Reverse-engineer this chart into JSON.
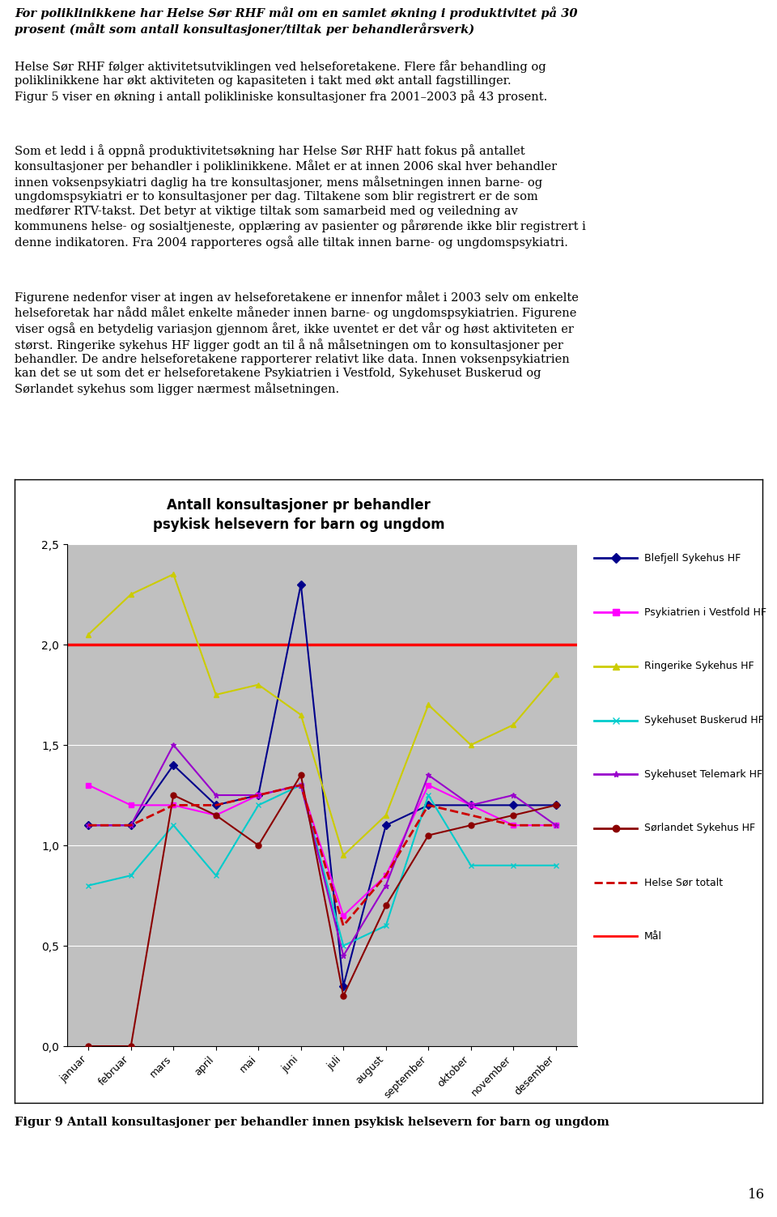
{
  "title_line1": "Antall konsultasjoner pr behandler",
  "title_line2": "psykisk helsevern for barn og ungdom",
  "months": [
    "januar",
    "februar",
    "mars",
    "april",
    "mai",
    "juni",
    "juli",
    "august",
    "september",
    "oktober",
    "november",
    "desember"
  ],
  "series": {
    "Blefjell Sykehus HF": {
      "data": [
        1.1,
        1.1,
        1.4,
        1.2,
        1.25,
        2.3,
        0.3,
        1.1,
        1.2,
        1.2,
        1.2,
        1.2
      ],
      "color": "#00008B",
      "marker": "D",
      "linewidth": 1.5,
      "linestyle": "-"
    },
    "Psykiatrien i Vestfold HF": {
      "data": [
        1.3,
        1.2,
        1.2,
        1.15,
        1.25,
        1.3,
        0.65,
        0.85,
        1.3,
        1.2,
        1.1,
        1.1
      ],
      "color": "#FF00FF",
      "marker": "s",
      "linewidth": 1.5,
      "linestyle": "-"
    },
    "Ringerike Sykehus HF": {
      "data": [
        2.05,
        2.25,
        2.35,
        1.75,
        1.8,
        1.65,
        0.95,
        1.15,
        1.7,
        1.5,
        1.6,
        1.85
      ],
      "color": "#CCCC00",
      "marker": "^",
      "linewidth": 1.5,
      "linestyle": "-"
    },
    "Sykehuset Buskerud HF": {
      "data": [
        0.8,
        0.85,
        1.1,
        0.85,
        1.2,
        1.3,
        0.5,
        0.6,
        1.25,
        0.9,
        0.9,
        0.9
      ],
      "color": "#00CCCC",
      "marker": "x",
      "linewidth": 1.5,
      "linestyle": "-"
    },
    "Sykehuset Telemark HF": {
      "data": [
        1.1,
        1.1,
        1.5,
        1.25,
        1.25,
        1.3,
        0.45,
        0.8,
        1.35,
        1.2,
        1.25,
        1.1
      ],
      "color": "#9900CC",
      "marker": "*",
      "linewidth": 1.5,
      "linestyle": "-"
    },
    "Sorlandet Sykehus HF": {
      "data": [
        0.0,
        0.0,
        1.25,
        1.15,
        1.0,
        1.35,
        0.25,
        0.7,
        1.05,
        1.1,
        1.15,
        1.2
      ],
      "color": "#8B0000",
      "marker": "o",
      "linewidth": 1.5,
      "linestyle": "-"
    }
  },
  "helse_sor_totalt": {
    "data": [
      1.1,
      1.1,
      1.2,
      1.2,
      1.25,
      1.3,
      0.6,
      0.85,
      1.2,
      1.15,
      1.1,
      1.1
    ],
    "color": "#CC0000",
    "linewidth": 2.0,
    "linestyle": "--"
  },
  "mal": {
    "value": 2.0,
    "color": "#FF0000",
    "linewidth": 2.5,
    "linestyle": "-"
  },
  "ylim": [
    0.0,
    2.5
  ],
  "yticks": [
    0.0,
    0.5,
    1.0,
    1.5,
    2.0,
    2.5
  ],
  "ytick_labels": [
    "0,0",
    "0,5",
    "1,0",
    "1,5",
    "2,0",
    "2,5"
  ],
  "plot_area_color": "#C0C0C0",
  "figure_background": "#FFFFFF",
  "para1_bold": "For poliklinikkene har Helse Sør RHF mål om en samlet økning i produktivitet på 30\nprosent (målt som antall konsultasjoner/tiltak per behandlerårsverk)",
  "para1_normal": "Helse Sør RHF følger aktivitetsutviklingen ved helseforetakene. Flere får behandling og\npoliklinikkene har økt aktiviteten og kapasiteten i takt med økt antall fagstillinger.\nFigur 5 viser en økning i antall polikliniske konsultasjoner fra 2001–2003 på 43 prosent.",
  "para2": "Som et ledd i å oppnå produktivitetsøkning har Helse Sør RHF hatt fokus på antallet\nkonsultasjoner per behandler i poliklinikkene. Målet er at innen 2006 skal hver behandler\ninnen voksenpsykiatri daglig ha tre konsultasjoner, mens målsetningen innen barne- og\nungdomspsykiatri er to konsultasjoner per dag. Tiltakene som blir registrert er de som\nmedfører RTV-takst. Det betyr at viktige tiltak som samarbeid med og veiledning av\nkommunens helse- og sosialtjeneste, opplæring av pasienter og pårørende ikke blir registrert i\ndenne indikatoren. Fra 2004 rapporteres også alle tiltak innen barne- og ungdomspsykiatri.",
  "para3": "Figurene nedenfor viser at ingen av helseforetakene er innenfor målet i 2003 selv om enkelte\nhelseforetak har nådd målet enkelte måneder innen barne- og ungdomspsykiatrien. Figurene\nviser også en betydelig variasjon gjennom året, ikke uventet er det vår og høst aktiviteten er\nstørst. Ringerike sykehus HF ligger godt an til å nå målsetningen om to konsultasjoner per\nbehandler. De andre helseforetakene rapporterer relativt like data. Innen voksenpsykiatrien\nkan det se ut som det er helseforetakene Psykiatrien i Vestfold, Sykehuset Buskerud og\nSørlandet sykehus som ligger nærmest målsetningen.",
  "figure_caption": "Figur 9 Antall konsultasjoner per behandler innen psykisk helsevern for barn og ungdom",
  "page_number": "16",
  "legend_entries": [
    {
      "label": "Blefjell Sykehus HF",
      "color": "#00008B",
      "linestyle": "-",
      "marker": "D"
    },
    {
      "label": "Psykiatrien i Vestfold HF",
      "color": "#FF00FF",
      "linestyle": "-",
      "marker": "s"
    },
    {
      "label": "Ringerike Sykehus HF",
      "color": "#CCCC00",
      "linestyle": "-",
      "marker": "^"
    },
    {
      "label": "Sykehuset Buskerud HF",
      "color": "#00CCCC",
      "linestyle": "-",
      "marker": "x"
    },
    {
      "label": "Sykehuset Telemark HF",
      "color": "#9900CC",
      "linestyle": "-",
      "marker": "*"
    },
    {
      "label": "Sørlandet Sykehus HF",
      "color": "#8B0000",
      "linestyle": "-",
      "marker": "o"
    },
    {
      "label": "Helse Sør totalt",
      "color": "#CC0000",
      "linestyle": "--",
      "marker": null
    },
    {
      "label": "Mål",
      "color": "#FF0000",
      "linestyle": "-",
      "marker": null
    }
  ]
}
